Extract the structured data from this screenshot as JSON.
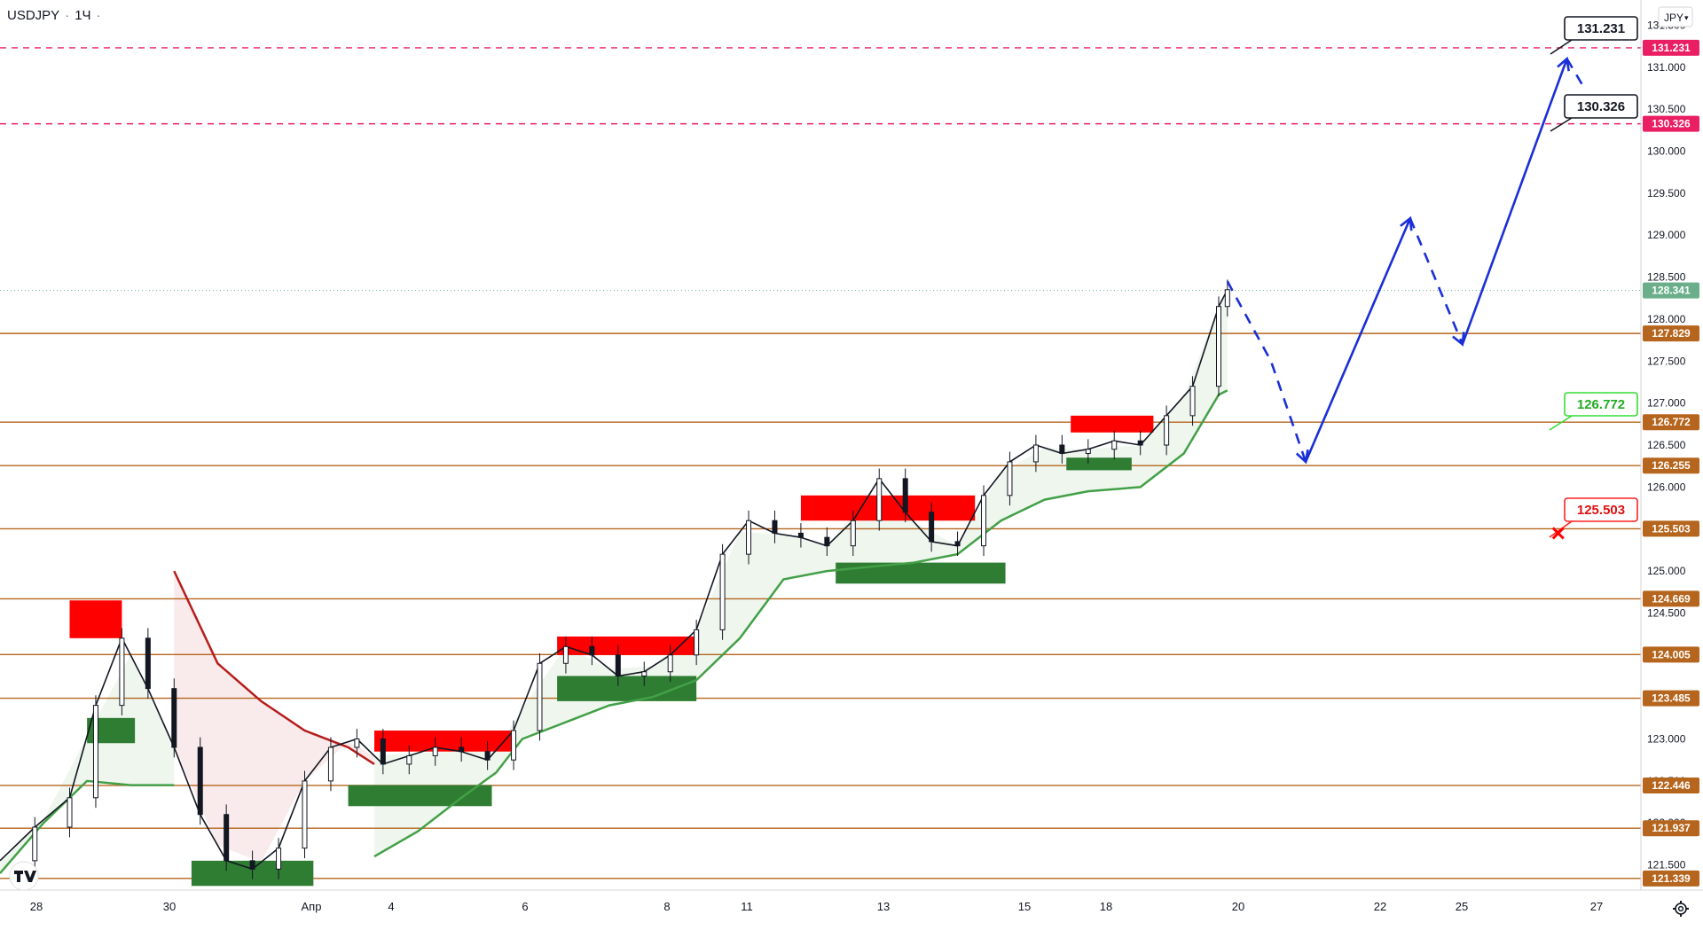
{
  "header": {
    "symbol": "USDJPY",
    "separator": "·",
    "interval": "1Ч",
    "dot": "·"
  },
  "axis": {
    "currency_button": "JPY",
    "settings_icon": "gear-icon",
    "logo": "tradingview-logo"
  },
  "colors": {
    "level_line": "#b5651d",
    "target_line": "#e91e63",
    "stop_marker": "#ff0000",
    "green_box": "#2e7d32",
    "red_box": "#ff0000",
    "supertrend_up": "#43a047",
    "supertrend_down": "#b71c1c",
    "projection": "#1a2fd6",
    "last_price_badge": "#6aaf8a"
  },
  "chart_data": {
    "type": "line",
    "title": "USDJPY · 1Ч",
    "ylim": [
      121.2,
      131.8
    ],
    "y_ticks": [
      "121.500",
      "122.000",
      "122.500",
      "123.000",
      "123.500",
      "124.000",
      "124.500",
      "125.000",
      "125.500",
      "126.000",
      "126.500",
      "127.000",
      "127.500",
      "128.000",
      "128.500",
      "129.000",
      "129.500",
      "130.000",
      "130.500",
      "131.000",
      "131.500"
    ],
    "x_ticks": [
      "28",
      "30",
      "Апр",
      "4",
      "6",
      "8",
      "11",
      "13",
      "15",
      "18",
      "20",
      "22",
      "25",
      "27"
    ],
    "last_price": "128.341",
    "horizontal_levels": [
      {
        "label": "121.339",
        "value": 121.339
      },
      {
        "label": "121.937",
        "value": 121.937
      },
      {
        "label": "122.446",
        "value": 122.446
      },
      {
        "label": "123.485",
        "value": 123.485
      },
      {
        "label": "124.005",
        "value": 124.005
      },
      {
        "label": "124.669",
        "value": 124.669
      },
      {
        "label": "125.503",
        "value": 125.503
      },
      {
        "label": "126.255",
        "value": 126.255
      },
      {
        "label": "126.772",
        "value": 126.772
      },
      {
        "label": "127.829",
        "value": 127.829
      }
    ],
    "target_levels": [
      {
        "label": "130.326",
        "value": 130.326
      },
      {
        "label": "131.231",
        "value": 131.231
      }
    ],
    "annotations": [
      {
        "label": "131.231",
        "type": "target"
      },
      {
        "label": "130.326",
        "type": "target"
      },
      {
        "label": "126.772",
        "type": "entry"
      },
      {
        "label": "125.503",
        "type": "stop"
      }
    ],
    "price_path": [
      [
        0,
        121.55
      ],
      [
        8,
        121.95
      ],
      [
        16,
        122.3
      ],
      [
        22,
        123.4
      ],
      [
        28,
        124.2
      ],
      [
        34,
        123.6
      ],
      [
        40,
        122.9
      ],
      [
        46,
        122.1
      ],
      [
        52,
        121.55
      ],
      [
        58,
        121.45
      ],
      [
        64,
        121.7
      ],
      [
        70,
        122.5
      ],
      [
        76,
        122.9
      ],
      [
        82,
        123.0
      ],
      [
        88,
        122.7
      ],
      [
        94,
        122.8
      ],
      [
        100,
        122.9
      ],
      [
        106,
        122.85
      ],
      [
        112,
        122.75
      ],
      [
        118,
        123.1
      ],
      [
        124,
        123.9
      ],
      [
        130,
        124.1
      ],
      [
        136,
        124.0
      ],
      [
        142,
        123.75
      ],
      [
        148,
        123.8
      ],
      [
        154,
        124.0
      ],
      [
        160,
        124.3
      ],
      [
        166,
        125.2
      ],
      [
        172,
        125.6
      ],
      [
        178,
        125.45
      ],
      [
        184,
        125.4
      ],
      [
        190,
        125.3
      ],
      [
        196,
        125.6
      ],
      [
        202,
        126.1
      ],
      [
        208,
        125.7
      ],
      [
        214,
        125.35
      ],
      [
        220,
        125.3
      ],
      [
        226,
        125.9
      ],
      [
        232,
        126.3
      ],
      [
        238,
        126.5
      ],
      [
        244,
        126.4
      ],
      [
        250,
        126.45
      ],
      [
        256,
        126.55
      ],
      [
        262,
        126.5
      ],
      [
        268,
        126.85
      ],
      [
        274,
        127.2
      ],
      [
        280,
        128.15
      ],
      [
        282,
        128.35
      ]
    ],
    "supertrend_up": [
      [
        0,
        121.4
      ],
      [
        10,
        122.0
      ],
      [
        20,
        122.5
      ],
      [
        30,
        122.45
      ],
      [
        40,
        122.45
      ]
    ],
    "supertrend_down": [
      [
        40,
        125.0
      ],
      [
        50,
        123.9
      ],
      [
        60,
        123.45
      ],
      [
        70,
        123.1
      ],
      [
        80,
        122.9
      ],
      [
        86,
        122.7
      ]
    ],
    "supertrend_up2": [
      [
        86,
        121.6
      ],
      [
        96,
        121.9
      ],
      [
        106,
        122.3
      ],
      [
        114,
        122.6
      ],
      [
        120,
        123.0
      ],
      [
        130,
        123.2
      ],
      [
        140,
        123.4
      ],
      [
        150,
        123.5
      ],
      [
        160,
        123.7
      ],
      [
        170,
        124.2
      ],
      [
        180,
        124.9
      ],
      [
        190,
        125.0
      ],
      [
        200,
        125.05
      ],
      [
        210,
        125.1
      ],
      [
        220,
        125.2
      ],
      [
        230,
        125.6
      ],
      [
        240,
        125.85
      ],
      [
        250,
        125.95
      ],
      [
        262,
        126.0
      ],
      [
        272,
        126.4
      ],
      [
        280,
        127.1
      ],
      [
        282,
        127.15
      ]
    ],
    "supply_zones": [
      {
        "x0": 16,
        "x1": 28,
        "y0": 124.2,
        "y1": 124.65
      },
      {
        "x0": 86,
        "x1": 118,
        "y0": 122.85,
        "y1": 123.1
      },
      {
        "x0": 128,
        "x1": 160,
        "y0": 124.0,
        "y1": 124.22
      },
      {
        "x0": 184,
        "x1": 224,
        "y0": 125.6,
        "y1": 125.9
      },
      {
        "x0": 246,
        "x1": 265,
        "y0": 126.65,
        "y1": 126.85
      }
    ],
    "demand_zones": [
      {
        "x0": 20,
        "x1": 31,
        "y0": 122.95,
        "y1": 123.25
      },
      {
        "x0": 44,
        "x1": 72,
        "y0": 121.25,
        "y1": 121.55
      },
      {
        "x0": 80,
        "x1": 113,
        "y0": 122.2,
        "y1": 122.45
      },
      {
        "x0": 128,
        "x1": 160,
        "y0": 123.45,
        "y1": 123.75
      },
      {
        "x0": 192,
        "x1": 231,
        "y0": 124.85,
        "y1": 125.1
      },
      {
        "x0": 245,
        "x1": 260,
        "y0": 126.2,
        "y1": 126.35
      }
    ],
    "projection_dashed_1": [
      [
        282,
        128.45
      ],
      [
        292,
        127.5
      ],
      [
        300,
        126.3
      ]
    ],
    "projection_solid_1": [
      [
        300,
        126.3
      ],
      [
        324,
        129.2
      ]
    ],
    "projection_dashed_2": [
      [
        324,
        129.2
      ],
      [
        336,
        127.7
      ]
    ],
    "projection_solid_2": [
      [
        336,
        127.7
      ],
      [
        360,
        131.1
      ]
    ],
    "projection_dashed_3": [
      [
        360,
        131.1
      ],
      [
        364,
        130.75
      ]
    ],
    "stop_marker": {
      "x": 358,
      "y": 125.45
    }
  }
}
